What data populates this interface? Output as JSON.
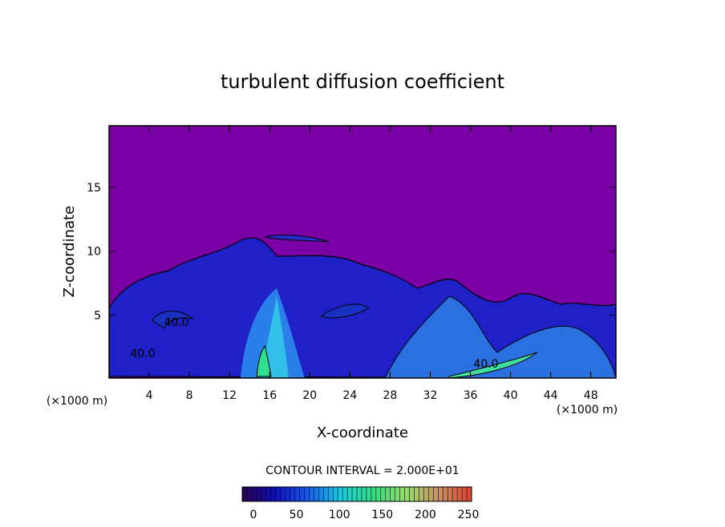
{
  "chart_data": {
    "type": "contour",
    "title": "turbulent diffusion coefficient",
    "x_label": "X-coordinate",
    "y_label": "Z-coordinate",
    "x_unit_label": "(×1000 m)",
    "xlim": [
      0,
      50.5
    ],
    "xticks": [
      4,
      8,
      12,
      16,
      20,
      24,
      28,
      32,
      36,
      40,
      44,
      48
    ],
    "ylim": [
      0.1,
      19.8
    ],
    "yticks": [
      5,
      10,
      15
    ],
    "contour_labels": [
      "40.0",
      "40.0",
      "40.0"
    ],
    "contour_interval_label": "CONTOUR INTERVAL = 2.000E+01",
    "colorbar_lim": [
      0,
      250
    ],
    "colorbar_ticks": [
      0,
      50,
      100,
      150,
      200,
      250
    ],
    "colormap": [
      "#2a0050",
      "#1010b0",
      "#1a5ae0",
      "#20c8e0",
      "#30e080",
      "#90e060",
      "#d09060",
      "#e04030"
    ]
  }
}
